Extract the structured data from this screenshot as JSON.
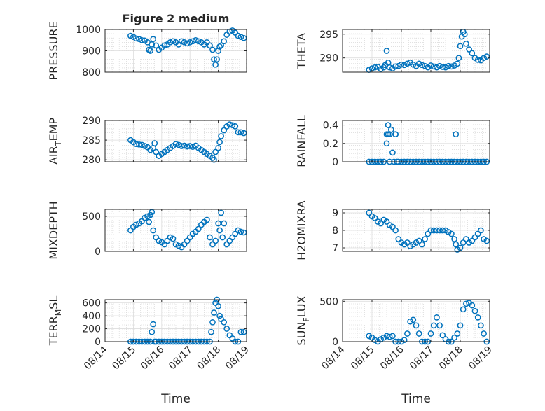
{
  "figure_title": "Figure 2 medium",
  "chart_data": [
    {
      "type": "scatter",
      "ylabel": "PRESSURE",
      "xlabel": "",
      "ylim": [
        800,
        1000
      ],
      "yticks": [
        800,
        900,
        1000
      ],
      "xlim": [
        0,
        5
      ],
      "xtick_labels": [
        "08/14",
        "08/15",
        "08/16",
        "08/17",
        "08/18",
        "08/19"
      ],
      "show_xtick_labels": false,
      "grid": true,
      "series": [
        {
          "marker": "circle-open",
          "color": "#0072BD",
          "x": [
            0.9,
            1.0,
            1.1,
            1.2,
            1.3,
            1.4,
            1.5,
            1.55,
            1.6,
            1.65,
            1.7,
            1.8,
            1.9,
            2.0,
            2.1,
            2.2,
            2.3,
            2.4,
            2.5,
            2.6,
            2.7,
            2.8,
            2.9,
            3.0,
            3.1,
            3.2,
            3.3,
            3.4,
            3.5,
            3.6,
            3.7,
            3.8,
            3.85,
            3.9,
            3.95,
            4.0,
            4.05,
            4.1,
            4.2,
            4.3,
            4.4,
            4.5,
            4.6,
            4.7,
            4.8,
            4.9
          ],
          "y": [
            970,
            965,
            958,
            955,
            950,
            948,
            940,
            905,
            900,
            930,
            955,
            925,
            905,
            915,
            925,
            930,
            940,
            945,
            940,
            930,
            945,
            940,
            935,
            940,
            945,
            950,
            945,
            940,
            930,
            940,
            925,
            905,
            860,
            835,
            860,
            900,
            920,
            925,
            945,
            975,
            990,
            995,
            985,
            970,
            965,
            960
          ]
        }
      ]
    },
    {
      "type": "scatter",
      "ylabel": "THETA",
      "xlabel": "",
      "ylim": [
        287,
        296
      ],
      "yticks": [
        290,
        295
      ],
      "xlim": [
        0,
        5
      ],
      "xtick_labels": [
        "08/14",
        "08/15",
        "08/16",
        "08/17",
        "08/18",
        "08/19"
      ],
      "show_xtick_labels": false,
      "grid": true,
      "series": [
        {
          "marker": "circle-open",
          "color": "#0072BD",
          "x": [
            0.9,
            1.0,
            1.1,
            1.2,
            1.3,
            1.4,
            1.45,
            1.5,
            1.55,
            1.6,
            1.7,
            1.8,
            1.9,
            2.0,
            2.1,
            2.2,
            2.3,
            2.4,
            2.5,
            2.6,
            2.7,
            2.8,
            2.9,
            3.0,
            3.1,
            3.2,
            3.3,
            3.4,
            3.5,
            3.6,
            3.7,
            3.8,
            3.9,
            3.95,
            4.0,
            4.05,
            4.1,
            4.15,
            4.2,
            4.3,
            4.4,
            4.5,
            4.6,
            4.7,
            4.8,
            4.9
          ],
          "y": [
            287.5,
            287.8,
            288.0,
            288.1,
            287.7,
            288.0,
            288.5,
            291.5,
            289.0,
            288.0,
            287.8,
            288.2,
            288.3,
            288.6,
            288.5,
            288.8,
            289.0,
            288.6,
            288.3,
            288.8,
            288.5,
            288.3,
            288.0,
            288.4,
            288.2,
            288.0,
            288.3,
            288.1,
            288.0,
            288.3,
            288.2,
            288.4,
            288.8,
            290.0,
            292.5,
            294.5,
            295.5,
            295.0,
            293.0,
            291.8,
            291.0,
            290.0,
            289.6,
            289.5,
            290.0,
            290.3
          ]
        }
      ]
    },
    {
      "type": "scatter",
      "ylabel": "AIR_TEMP",
      "xlabel": "",
      "ylim": [
        279.5,
        290
      ],
      "yticks": [
        280,
        285,
        290
      ],
      "xlim": [
        0,
        5
      ],
      "xtick_labels": [
        "08/14",
        "08/15",
        "08/16",
        "08/17",
        "08/18",
        "08/19"
      ],
      "show_xtick_labels": false,
      "grid": true,
      "series": [
        {
          "marker": "circle-open",
          "color": "#0072BD",
          "x": [
            0.9,
            1.0,
            1.1,
            1.2,
            1.3,
            1.4,
            1.5,
            1.6,
            1.7,
            1.75,
            1.8,
            1.9,
            2.0,
            2.1,
            2.2,
            2.3,
            2.4,
            2.5,
            2.6,
            2.7,
            2.8,
            2.9,
            3.0,
            3.1,
            3.2,
            3.3,
            3.4,
            3.5,
            3.6,
            3.7,
            3.8,
            3.85,
            3.9,
            4.0,
            4.05,
            4.1,
            4.2,
            4.3,
            4.4,
            4.5,
            4.6,
            4.7,
            4.8,
            4.9
          ],
          "y": [
            285.0,
            284.5,
            284.0,
            283.9,
            283.8,
            283.5,
            283.2,
            282.5,
            283.0,
            284.2,
            282.0,
            281.0,
            281.5,
            282.0,
            282.5,
            283.0,
            283.5,
            284.0,
            283.8,
            283.5,
            283.6,
            283.4,
            283.5,
            283.3,
            283.6,
            283.0,
            282.5,
            282.0,
            281.5,
            281.0,
            280.5,
            280.0,
            282.0,
            283.0,
            284.5,
            286.0,
            287.5,
            288.5,
            289.0,
            288.8,
            288.5,
            287.0,
            287.0,
            286.8
          ]
        }
      ]
    },
    {
      "type": "scatter",
      "ylabel": "RAINFALL",
      "xlabel": "",
      "ylim": [
        0,
        0.45
      ],
      "yticks": [
        0,
        0.2,
        0.4
      ],
      "ytick_labels": [
        "0",
        "0.2",
        "0.4"
      ],
      "xlim": [
        0,
        5
      ],
      "xtick_labels": [
        "08/14",
        "08/15",
        "08/16",
        "08/17",
        "08/18",
        "08/19"
      ],
      "show_xtick_labels": false,
      "grid": true,
      "series": [
        {
          "marker": "circle-open",
          "color": "#0072BD",
          "x": [
            0.9,
            1.0,
            1.1,
            1.2,
            1.3,
            1.4,
            1.5,
            1.5,
            1.55,
            1.55,
            1.6,
            1.6,
            1.65,
            1.7,
            1.75,
            1.8,
            1.8,
            1.85,
            1.9,
            2.0,
            2.1,
            2.2,
            2.3,
            2.4,
            2.5,
            2.6,
            2.7,
            2.8,
            2.9,
            3.0,
            3.1,
            3.2,
            3.3,
            3.4,
            3.5,
            3.6,
            3.7,
            3.8,
            3.85,
            3.9,
            4.0,
            4.1,
            4.2,
            4.3,
            4.4,
            4.5,
            4.6,
            4.7,
            4.8,
            4.9
          ],
          "y": [
            0,
            0,
            0,
            0,
            0,
            0,
            0.3,
            0.2,
            0.4,
            0.3,
            0.3,
            0,
            0.35,
            0.1,
            0,
            0.3,
            0.3,
            0,
            0,
            0,
            0,
            0,
            0,
            0,
            0,
            0,
            0,
            0,
            0,
            0,
            0,
            0,
            0,
            0,
            0,
            0,
            0,
            0,
            0.3,
            0,
            0,
            0,
            0,
            0,
            0,
            0,
            0,
            0,
            0,
            0
          ]
        }
      ]
    },
    {
      "type": "scatter",
      "ylabel": "MIXDEPTH",
      "xlabel": "",
      "ylim": [
        0,
        600
      ],
      "yticks": [
        0,
        500
      ],
      "xlim": [
        0,
        5
      ],
      "xtick_labels": [
        "08/14",
        "08/15",
        "08/16",
        "08/17",
        "08/18",
        "08/19"
      ],
      "show_xtick_labels": false,
      "grid": true,
      "series": [
        {
          "marker": "circle-open",
          "color": "#0072BD",
          "x": [
            0.9,
            1.0,
            1.1,
            1.2,
            1.3,
            1.4,
            1.5,
            1.55,
            1.6,
            1.65,
            1.7,
            1.8,
            1.9,
            2.0,
            2.1,
            2.2,
            2.3,
            2.4,
            2.5,
            2.6,
            2.7,
            2.8,
            2.9,
            3.0,
            3.1,
            3.2,
            3.3,
            3.4,
            3.5,
            3.6,
            3.7,
            3.8,
            3.9,
            4.0,
            4.05,
            4.1,
            4.15,
            4.2,
            4.3,
            4.4,
            4.5,
            4.6,
            4.7,
            4.8,
            4.9
          ],
          "y": [
            300,
            350,
            380,
            400,
            430,
            480,
            500,
            420,
            520,
            560,
            300,
            200,
            150,
            130,
            100,
            150,
            200,
            180,
            100,
            80,
            60,
            100,
            150,
            200,
            250,
            280,
            320,
            380,
            420,
            450,
            200,
            100,
            150,
            400,
            300,
            550,
            200,
            400,
            100,
            150,
            200,
            250,
            300,
            280,
            270
          ]
        }
      ]
    },
    {
      "type": "scatter",
      "ylabel": "H2OMIXRA",
      "xlabel": "",
      "ylim": [
        6.8,
        9.2
      ],
      "yticks": [
        7,
        8,
        9
      ],
      "xlim": [
        0,
        5
      ],
      "xtick_labels": [
        "08/14",
        "08/15",
        "08/16",
        "08/17",
        "08/18",
        "08/19"
      ],
      "show_xtick_labels": false,
      "grid": true,
      "series": [
        {
          "marker": "circle-open",
          "color": "#0072BD",
          "x": [
            0.9,
            1.0,
            1.1,
            1.2,
            1.3,
            1.4,
            1.5,
            1.6,
            1.7,
            1.8,
            1.9,
            2.0,
            2.1,
            2.2,
            2.3,
            2.4,
            2.5,
            2.6,
            2.7,
            2.8,
            2.9,
            3.0,
            3.1,
            3.2,
            3.3,
            3.4,
            3.5,
            3.6,
            3.7,
            3.8,
            3.85,
            3.9,
            4.0,
            4.1,
            4.2,
            4.3,
            4.4,
            4.5,
            4.6,
            4.7,
            4.8,
            4.9
          ],
          "y": [
            9.0,
            8.8,
            8.7,
            8.5,
            8.4,
            8.6,
            8.5,
            8.3,
            8.2,
            8.0,
            7.5,
            7.3,
            7.2,
            7.3,
            7.1,
            7.2,
            7.3,
            7.4,
            7.2,
            7.5,
            7.8,
            8.0,
            8.0,
            8.0,
            8.0,
            8.0,
            8.0,
            7.9,
            7.8,
            7.5,
            7.2,
            6.9,
            7.0,
            7.3,
            7.5,
            7.3,
            7.4,
            7.6,
            7.8,
            8.0,
            7.5,
            7.4
          ]
        }
      ]
    },
    {
      "type": "scatter",
      "ylabel": "TERR_MSL",
      "xlabel": "Time",
      "ylim": [
        0,
        650
      ],
      "yticks": [
        0,
        200,
        400,
        600
      ],
      "xlim": [
        0,
        5
      ],
      "xtick_labels": [
        "08/14",
        "08/15",
        "08/16",
        "08/17",
        "08/18",
        "08/19"
      ],
      "show_xtick_labels": true,
      "grid": true,
      "series": [
        {
          "marker": "circle-open",
          "color": "#0072BD",
          "x": [
            0.9,
            1.0,
            1.1,
            1.2,
            1.3,
            1.4,
            1.5,
            1.6,
            1.65,
            1.7,
            1.75,
            1.8,
            1.9,
            2.0,
            2.1,
            2.2,
            2.3,
            2.4,
            2.5,
            2.6,
            2.7,
            2.8,
            2.9,
            3.0,
            3.1,
            3.2,
            3.3,
            3.4,
            3.5,
            3.6,
            3.7,
            3.75,
            3.8,
            3.85,
            3.9,
            3.95,
            4.0,
            4.05,
            4.1,
            4.2,
            4.3,
            4.4,
            4.5,
            4.6,
            4.7,
            4.8,
            4.9
          ],
          "y": [
            0,
            0,
            0,
            0,
            0,
            0,
            0,
            0,
            150,
            270,
            0,
            0,
            0,
            0,
            0,
            0,
            0,
            0,
            0,
            0,
            0,
            0,
            0,
            0,
            0,
            0,
            0,
            0,
            0,
            0,
            0,
            150,
            300,
            450,
            600,
            650,
            550,
            400,
            350,
            300,
            200,
            100,
            50,
            0,
            0,
            150,
            150
          ]
        }
      ]
    },
    {
      "type": "scatter",
      "ylabel": "SUN_FLUX",
      "xlabel": "Time",
      "ylim": [
        0,
        520
      ],
      "yticks": [
        0,
        500
      ],
      "xlim": [
        0,
        5
      ],
      "xtick_labels": [
        "08/14",
        "08/15",
        "08/16",
        "08/17",
        "08/18",
        "08/19"
      ],
      "show_xtick_labels": true,
      "grid": true,
      "series": [
        {
          "marker": "circle-open",
          "color": "#0072BD",
          "x": [
            0.9,
            1.0,
            1.1,
            1.2,
            1.3,
            1.4,
            1.5,
            1.6,
            1.7,
            1.8,
            1.9,
            2.0,
            2.1,
            2.2,
            2.3,
            2.4,
            2.5,
            2.6,
            2.7,
            2.8,
            2.9,
            3.0,
            3.1,
            3.2,
            3.3,
            3.4,
            3.5,
            3.6,
            3.7,
            3.8,
            3.9,
            4.0,
            4.1,
            4.2,
            4.3,
            4.4,
            4.5,
            4.6,
            4.7,
            4.8,
            4.9
          ],
          "y": [
            70,
            50,
            20,
            0,
            30,
            50,
            70,
            60,
            70,
            0,
            0,
            0,
            20,
            100,
            250,
            270,
            200,
            100,
            0,
            0,
            0,
            100,
            200,
            300,
            200,
            80,
            30,
            0,
            0,
            50,
            100,
            200,
            400,
            470,
            480,
            450,
            380,
            300,
            200,
            100,
            0
          ]
        }
      ]
    }
  ]
}
